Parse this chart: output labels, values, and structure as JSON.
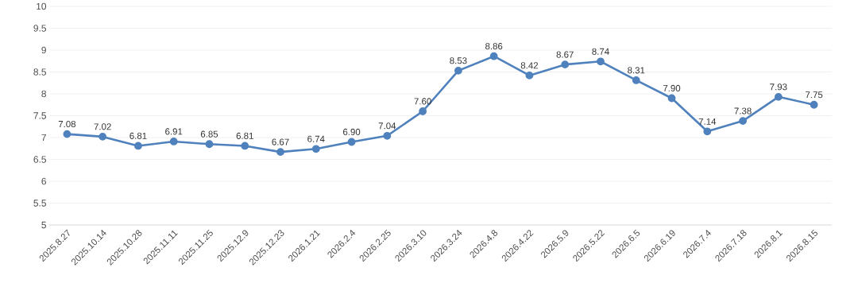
{
  "chart_data": {
    "type": "line",
    "categories": [
      "2025.8.27",
      "2025.10.14",
      "2025.10.28",
      "2025.11.11",
      "2025.11.25",
      "2025.12.9",
      "2025.12.23",
      "2026.1.21",
      "2026.2.4",
      "2026.2.25",
      "2026.3.10",
      "2026.3.24",
      "2026.4.8",
      "2026.4.22",
      "2026.5.9",
      "2026.5.22",
      "2026.6.5",
      "2026.6.19",
      "2026.7.4",
      "2026.7.18",
      "2026.8.1",
      "2026.8.15"
    ],
    "values": [
      7.08,
      7.02,
      6.81,
      6.91,
      6.85,
      6.81,
      6.67,
      6.74,
      6.9,
      7.04,
      7.6,
      8.53,
      8.86,
      8.42,
      8.67,
      8.74,
      8.31,
      7.9,
      7.14,
      7.38,
      7.93,
      7.75
    ],
    "value_labels": [
      "7.08",
      "7.02",
      "6.81",
      "6.91",
      "6.85",
      "6.81",
      "6.67",
      "6.74",
      "6.90",
      "7.04",
      "7.60",
      "8.53",
      "8.86",
      "8.42",
      "8.67",
      "8.74",
      "8.31",
      "7.90",
      "7.14",
      "7.38",
      "7.93",
      "7.75"
    ],
    "color": "#4f81bd",
    "ylim": [
      5,
      10
    ],
    "yticks": [
      5,
      5.5,
      6,
      6.5,
      7,
      7.5,
      8,
      8.5,
      9,
      9.5,
      10
    ],
    "grid": "y",
    "marker": "circle",
    "line_style": "solid"
  }
}
